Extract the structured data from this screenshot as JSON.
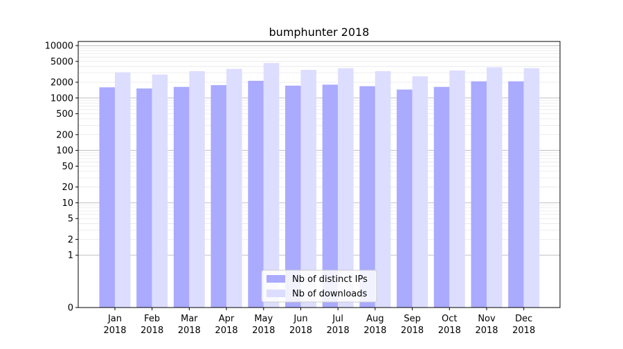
{
  "chart_data": {
    "type": "bar",
    "title": "bumphunter 2018",
    "xlabel": "",
    "ylabel": "",
    "yscale": "symlog",
    "ylim": [
      0,
      12000
    ],
    "yticks": [
      0,
      1,
      2,
      5,
      10,
      20,
      50,
      100,
      200,
      500,
      1000,
      2000,
      5000,
      10000
    ],
    "grid": true,
    "legend_position": "bottom-center",
    "categories": [
      [
        "Jan",
        "2018"
      ],
      [
        "Feb",
        "2018"
      ],
      [
        "Mar",
        "2018"
      ],
      [
        "Apr",
        "2018"
      ],
      [
        "May",
        "2018"
      ],
      [
        "Jun",
        "2018"
      ],
      [
        "Jul",
        "2018"
      ],
      [
        "Aug",
        "2018"
      ],
      [
        "Sep",
        "2018"
      ],
      [
        "Oct",
        "2018"
      ],
      [
        "Nov",
        "2018"
      ],
      [
        "Dec",
        "2018"
      ]
    ],
    "series": [
      {
        "name": "Nb of distinct IPs",
        "color": "#aaaaff",
        "values": [
          1600,
          1520,
          1630,
          1760,
          2130,
          1720,
          1800,
          1680,
          1450,
          1630,
          2080,
          2080
        ]
      },
      {
        "name": "Nb of downloads",
        "color": "#ddddff",
        "values": [
          3100,
          2800,
          3250,
          3600,
          4650,
          3450,
          3700,
          3250,
          2600,
          3350,
          3850,
          3700
        ]
      }
    ]
  }
}
